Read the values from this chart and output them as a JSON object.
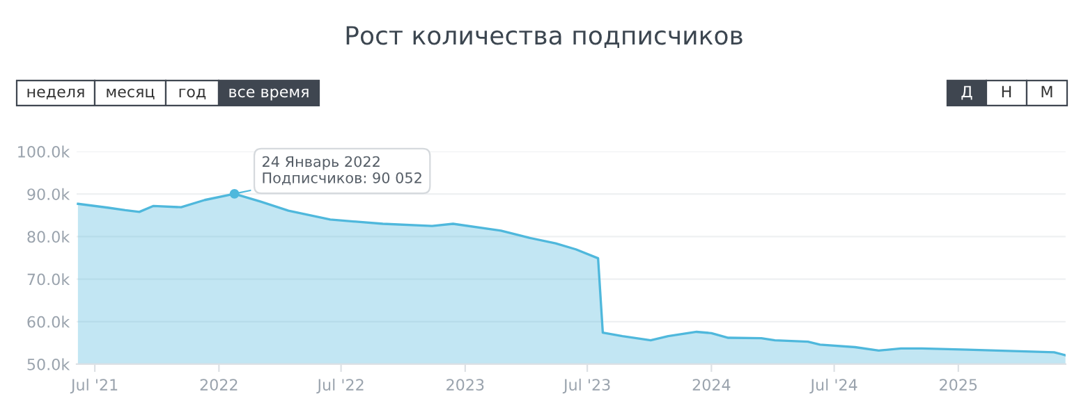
{
  "chart_data": {
    "type": "area",
    "title": "Рост количества подписчиков",
    "x": [
      "2021-06-06",
      "2021-07-20",
      "2021-08-15",
      "2021-09-05",
      "2021-09-26",
      "2021-11-06",
      "2021-12-11",
      "2022-01-24",
      "2022-03-04",
      "2022-04-14",
      "2022-06-15",
      "2022-09-01",
      "2022-11-13",
      "2022-12-14",
      "2023-02-23",
      "2023-04-06",
      "2023-05-15",
      "2023-06-14",
      "2023-07-17",
      "2023-07-24",
      "2023-08-22",
      "2023-10-03",
      "2023-10-29",
      "2023-12-10",
      "2024-01-01",
      "2024-01-26",
      "2024-03-15",
      "2024-04-04",
      "2024-05-23",
      "2024-06-10",
      "2024-08-01",
      "2024-09-05",
      "2024-10-08",
      "2024-11-08",
      "2025-01-15",
      "2025-05-23",
      "2025-06-09"
    ],
    "series": [
      {
        "color": "#4fb8dc",
        "values": [
          87700,
          86800,
          86200,
          85800,
          87200,
          86900,
          88600,
          90052,
          88200,
          86100,
          84000,
          83000,
          82500,
          83000,
          81400,
          79700,
          78400,
          77000,
          74900,
          57400,
          56600,
          55600,
          56600,
          57600,
          57300,
          56200,
          56100,
          55600,
          55300,
          54600,
          54000,
          53200,
          53700,
          53700,
          53400,
          52800,
          52100
        ]
      }
    ],
    "xlim": [
      "2021-06-04",
      "2025-06-09"
    ],
    "xticks": [
      {
        "value": "2021-07-01",
        "label": "Jul '21"
      },
      {
        "value": "2022-01-01",
        "label": "2022"
      },
      {
        "value": "2022-07-01",
        "label": "Jul '22"
      },
      {
        "value": "2023-01-01",
        "label": "2023"
      },
      {
        "value": "2023-07-01",
        "label": "Jul '23"
      },
      {
        "value": "2024-01-01",
        "label": "2024"
      },
      {
        "value": "2024-07-01",
        "label": "Jul '24"
      },
      {
        "value": "2025-01-01",
        "label": "2025"
      }
    ],
    "ylim": [
      50000,
      100000
    ],
    "yticks": [
      {
        "value": 50000,
        "label": "50.0k"
      },
      {
        "value": 60000,
        "label": "60.0k"
      },
      {
        "value": 70000,
        "label": "70.0k"
      },
      {
        "value": 80000,
        "label": "80.0k"
      },
      {
        "value": 90000,
        "label": "90.0k"
      },
      {
        "value": 100000,
        "label": "100.0k"
      }
    ],
    "grid": "y",
    "annotations": [
      {
        "text": "24 Январь 2022\nПодписчиков: 90 052",
        "x": "2022-01-24",
        "y": 90052
      },
      "неделя",
      "месяц",
      "год",
      "все время",
      "Д",
      "Н",
      "М"
    ]
  }
}
